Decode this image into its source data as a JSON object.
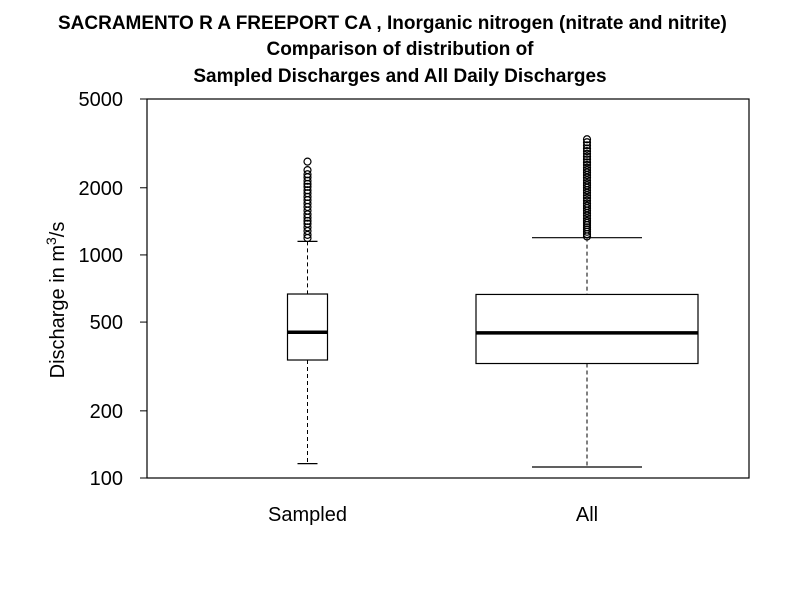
{
  "chart_data": {
    "type": "box",
    "title": [
      "SACRAMENTO R A FREEPORT CA , Inorganic nitrogen (nitrate and nitrite)",
      "Comparison of distribution of",
      "Sampled Discharges and All Daily Discharges"
    ],
    "ylabel_base": "Discharge in m",
    "ylabel_sup": "3",
    "ylabel_tail": "/s",
    "yscale": "log",
    "ylim": [
      100,
      5000
    ],
    "yticks": [
      100,
      200,
      500,
      1000,
      2000,
      5000
    ],
    "ytick_labels": [
      "100",
      "200",
      "500",
      "1000",
      "2000",
      "5000"
    ],
    "categories": [
      "Sampled",
      "All"
    ],
    "boxes": [
      {
        "name": "Sampled",
        "whisker_low": 116,
        "q1": 338,
        "median": 450,
        "q3": 668,
        "whisker_high": 1150,
        "outliers": [
          1190,
          1230,
          1280,
          1330,
          1380,
          1420,
          1470,
          1520,
          1580,
          1640,
          1700,
          1760,
          1820,
          1890,
          1950,
          2020,
          2080,
          2150,
          2230,
          2300,
          2400,
          2620
        ]
      },
      {
        "name": "All",
        "whisker_low": 112,
        "q1": 326,
        "median": 447,
        "q3": 665,
        "whisker_high": 1195,
        "outliers": [
          1210,
          1240,
          1270,
          1300,
          1330,
          1360,
          1390,
          1420,
          1460,
          1500,
          1540,
          1580,
          1620,
          1660,
          1700,
          1750,
          1800,
          1850,
          1900,
          1950,
          2000,
          2050,
          2100,
          2160,
          2220,
          2280,
          2340,
          2400,
          2460,
          2530,
          2600,
          2680,
          2760,
          2840,
          2920,
          3000,
          3100,
          3200,
          3300
        ]
      }
    ]
  }
}
